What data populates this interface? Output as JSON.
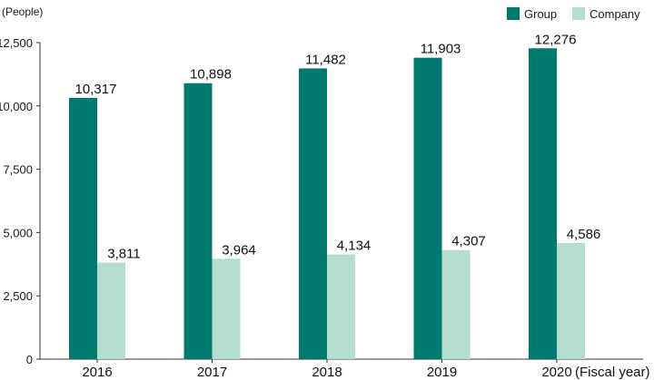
{
  "chart_data": {
    "type": "bar",
    "categories": [
      "2016",
      "2017",
      "2018",
      "2019",
      "2020"
    ],
    "series": [
      {
        "name": "Group",
        "values": [
          10317,
          10898,
          11482,
          11903,
          12276
        ],
        "labels": [
          "10,317",
          "10,898",
          "11,482",
          "11,903",
          "12,276"
        ],
        "color": "#007A6C"
      },
      {
        "name": "Company",
        "values": [
          3811,
          3964,
          4134,
          4307,
          4586
        ],
        "labels": [
          "3,811",
          "3,964",
          "4,134",
          "4,307",
          "4,586"
        ],
        "color": "#B3DDCF"
      }
    ],
    "y_unit_label": "(People)",
    "x_unit_label": "(Fiscal year)",
    "ylim": [
      0,
      12500
    ],
    "yticks": [
      0,
      2500,
      5000,
      7500,
      10000,
      12500
    ],
    "ytick_labels": [
      "0",
      "2,500",
      "5,000",
      "7,500",
      "10,000",
      "12,500"
    ],
    "legend_position": "top-right",
    "grid": false
  }
}
